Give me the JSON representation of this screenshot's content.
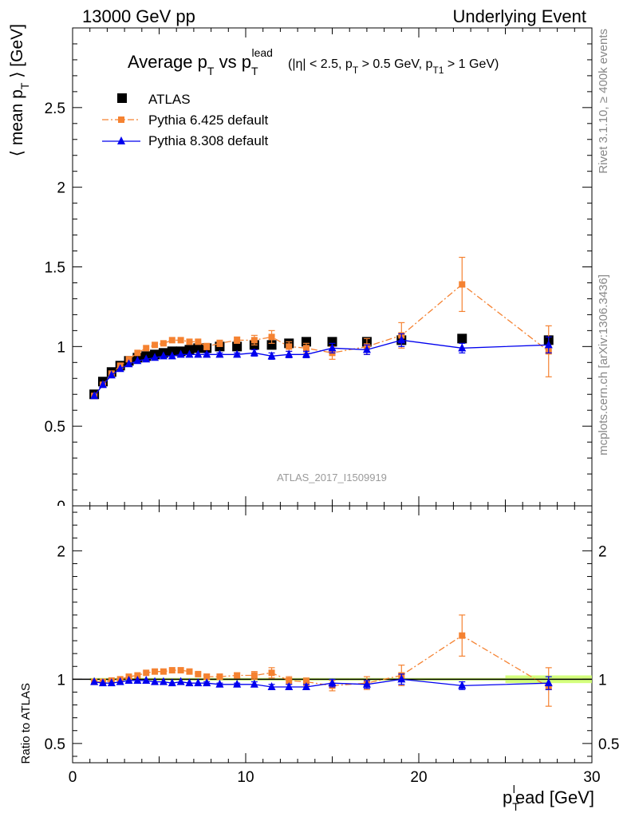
{
  "header": {
    "left": "13000 GeV pp",
    "right": "Underlying Event"
  },
  "title": {
    "main_parts": [
      "Average p",
      "T",
      " vs p",
      "T",
      "lead"
    ],
    "cuts_parts": [
      "(|η| < 2.5, p",
      "T",
      " > 0.5 GeV, p",
      "T1",
      " > 1 GeV)"
    ]
  },
  "side_labels": {
    "rivet": "Rivet 3.1.10, ≥ 400k events",
    "mcplots": "mcplots.cern.ch [arXiv:1306.3436]"
  },
  "analysis_ref": "ATLAS_2017_I1509919",
  "legend": [
    {
      "label": "ATLAS",
      "marker": "square",
      "color": "#000000"
    },
    {
      "label": "Pythia 6.425 default",
      "marker": "square",
      "color": "#f58231",
      "dash": "dashdot"
    },
    {
      "label": "Pythia 8.308 default",
      "marker": "triangle",
      "color": "#0000ee"
    }
  ],
  "chart_data": [
    {
      "type": "line",
      "panel": "main",
      "ylabel_parts": [
        "⟨ mean p",
        "T",
        " ⟩ [GeV]"
      ],
      "xlim": [
        0,
        30
      ],
      "ylim": [
        0,
        3.0
      ],
      "y_ticks": [
        0.5,
        1,
        1.5,
        2,
        2.5
      ],
      "y_tick_labels": [
        "0.5",
        "1",
        "1.5",
        "2",
        "2.5"
      ],
      "partial_bottom_label": "0",
      "series": [
        {
          "name": "ATLAS",
          "color": "#000000",
          "x": [
            1.25,
            1.75,
            2.25,
            2.75,
            3.25,
            3.75,
            4.25,
            4.75,
            5.25,
            5.75,
            6.25,
            6.75,
            7.25,
            7.75,
            8.5,
            9.5,
            10.5,
            11.5,
            12.5,
            13.5,
            15.0,
            17.0,
            19.0,
            22.5,
            27.5
          ],
          "y": [
            0.7,
            0.78,
            0.84,
            0.88,
            0.91,
            0.93,
            0.94,
            0.95,
            0.96,
            0.97,
            0.97,
            0.98,
            0.99,
            0.99,
            1.0,
            1.0,
            1.01,
            1.01,
            1.02,
            1.03,
            1.03,
            1.03,
            1.04,
            1.05,
            1.04
          ]
        },
        {
          "name": "Pythia 6.425 default",
          "color": "#f58231",
          "x": [
            1.25,
            1.75,
            2.25,
            2.75,
            3.25,
            3.75,
            4.25,
            4.75,
            5.25,
            5.75,
            6.25,
            6.75,
            7.25,
            7.75,
            8.5,
            9.5,
            10.5,
            11.5,
            12.5,
            13.5,
            15.0,
            17.0,
            19.0,
            22.5,
            27.5
          ],
          "y": [
            0.69,
            0.76,
            0.83,
            0.88,
            0.92,
            0.96,
            0.99,
            1.01,
            1.02,
            1.04,
            1.04,
            1.03,
            1.03,
            1.0,
            1.02,
            1.04,
            1.04,
            1.06,
            1.0,
            0.99,
            0.96,
            1.0,
            1.07,
            1.39,
            0.97
          ],
          "yerr": [
            0,
            0,
            0,
            0,
            0,
            0,
            0,
            0,
            0,
            0,
            0,
            0,
            0,
            0.02,
            0.02,
            0.02,
            0.03,
            0.04,
            0.03,
            0.03,
            0.04,
            0.05,
            0.08,
            0.17,
            0.16
          ]
        },
        {
          "name": "Pythia 8.308 default",
          "color": "#0000ee",
          "x": [
            1.25,
            1.75,
            2.25,
            2.75,
            3.25,
            3.75,
            4.25,
            4.75,
            5.25,
            5.75,
            6.25,
            6.75,
            7.25,
            7.75,
            8.5,
            9.5,
            10.5,
            11.5,
            12.5,
            13.5,
            15.0,
            17.0,
            19.0,
            22.5,
            27.5
          ],
          "y": [
            0.69,
            0.76,
            0.82,
            0.86,
            0.89,
            0.91,
            0.92,
            0.93,
            0.94,
            0.94,
            0.95,
            0.95,
            0.95,
            0.95,
            0.95,
            0.95,
            0.96,
            0.94,
            0.95,
            0.95,
            0.99,
            0.98,
            1.04,
            0.99,
            1.01
          ],
          "yerr": [
            0,
            0,
            0,
            0,
            0,
            0,
            0,
            0,
            0,
            0,
            0,
            0,
            0,
            0.01,
            0.01,
            0.01,
            0.02,
            0.02,
            0.02,
            0.02,
            0.03,
            0.03,
            0.04,
            0.03,
            0.05
          ]
        }
      ]
    },
    {
      "type": "line",
      "panel": "ratio",
      "ylabel": "Ratio to ATLAS",
      "xlabel_parts": [
        "p",
        "T",
        "l",
        "ead [GeV]"
      ],
      "xlim": [
        0,
        30
      ],
      "ylim": [
        0.35,
        2.35
      ],
      "x_ticks": [
        0,
        10,
        20,
        30
      ],
      "x_tick_labels": [
        "0",
        "10",
        "20",
        "30"
      ],
      "y_ticks": [
        0.5,
        1,
        2
      ],
      "y_tick_labels": [
        "0.5",
        "1",
        "2"
      ],
      "reference_line": 1,
      "band_color": "#ccff66",
      "series": [
        {
          "name": "Pythia 6.425 default",
          "color": "#f58231",
          "x": [
            1.25,
            1.75,
            2.25,
            2.75,
            3.25,
            3.75,
            4.25,
            4.75,
            5.25,
            5.75,
            6.25,
            6.75,
            7.25,
            7.75,
            8.5,
            9.5,
            10.5,
            11.5,
            12.5,
            13.5,
            15.0,
            17.0,
            19.0,
            22.5,
            27.5
          ],
          "y": [
            0.98,
            0.98,
            0.99,
            1.0,
            1.02,
            1.03,
            1.05,
            1.06,
            1.06,
            1.07,
            1.07,
            1.06,
            1.04,
            1.02,
            1.02,
            1.03,
            1.03,
            1.05,
            0.99,
            0.98,
            0.95,
            0.97,
            1.03,
            1.34,
            0.94
          ],
          "yerr": [
            0,
            0,
            0,
            0,
            0,
            0,
            0,
            0,
            0,
            0,
            0,
            0,
            0,
            0.02,
            0.02,
            0.02,
            0.03,
            0.04,
            0.03,
            0.03,
            0.04,
            0.05,
            0.08,
            0.16,
            0.15
          ]
        },
        {
          "name": "Pythia 8.308 default",
          "color": "#0000ee",
          "x": [
            1.25,
            1.75,
            2.25,
            2.75,
            3.25,
            3.75,
            4.25,
            4.75,
            5.25,
            5.75,
            6.25,
            6.75,
            7.25,
            7.75,
            8.5,
            9.5,
            10.5,
            11.5,
            12.5,
            13.5,
            15.0,
            17.0,
            19.0,
            22.5,
            27.5
          ],
          "y": [
            0.98,
            0.97,
            0.97,
            0.98,
            0.99,
            0.99,
            0.99,
            0.98,
            0.98,
            0.97,
            0.98,
            0.97,
            0.97,
            0.97,
            0.96,
            0.96,
            0.96,
            0.94,
            0.94,
            0.94,
            0.97,
            0.96,
            1.0,
            0.95,
            0.97
          ],
          "yerr": [
            0,
            0,
            0,
            0,
            0,
            0,
            0,
            0,
            0,
            0,
            0,
            0,
            0,
            0.01,
            0.01,
            0.01,
            0.02,
            0.02,
            0.02,
            0.02,
            0.03,
            0.03,
            0.04,
            0.03,
            0.05
          ]
        }
      ]
    }
  ]
}
